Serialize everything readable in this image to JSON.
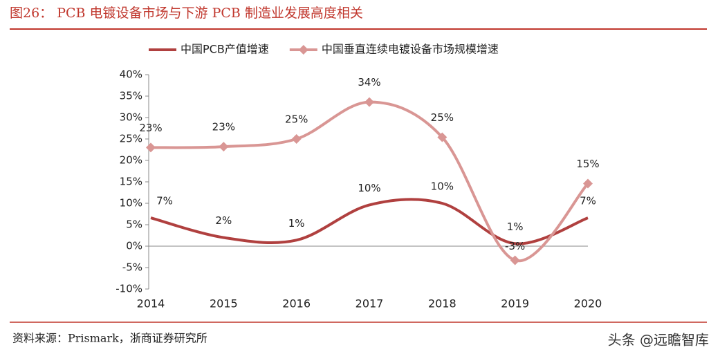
{
  "chart_data": {
    "type": "line",
    "title": "图26： PCB 电镀设备市场与下游 PCB 制造业发展高度相关",
    "source": "资料来源：Prismark，浙商证券研究所",
    "watermark": "头条 @远瞻智库",
    "categories": [
      "2014",
      "2015",
      "2016",
      "2017",
      "2018",
      "2019",
      "2020"
    ],
    "series": [
      {
        "name": "中国PCB产值增速",
        "color": "#b0403f",
        "smooth": true,
        "values": [
          6.6,
          2,
          1.4,
          9.6,
          10,
          0.6,
          6.6
        ],
        "value_labels": [
          "7%",
          "2%",
          "1%",
          "10%",
          "10%",
          "1%",
          "7%"
        ]
      },
      {
        "name": "中国垂直连续电镀设备市场规模增速",
        "color": "#d99694",
        "smooth": true,
        "marker": "diamond",
        "values": [
          23,
          23.2,
          25,
          33.6,
          25.4,
          -3.3,
          14.6
        ],
        "value_labels": [
          "23%",
          "23%",
          "25%",
          "34%",
          "25%",
          "-3%",
          "15%"
        ]
      }
    ],
    "ylim": [
      -10,
      40
    ],
    "yticks": [
      {
        "value": -10,
        "label": "-10%"
      },
      {
        "value": -5,
        "label": "-5%"
      },
      {
        "value": 0,
        "label": "0%"
      },
      {
        "value": 5,
        "label": "5%"
      },
      {
        "value": 10,
        "label": "10%"
      },
      {
        "value": 15,
        "label": "15%"
      },
      {
        "value": 20,
        "label": "20%"
      },
      {
        "value": 25,
        "label": "25%"
      },
      {
        "value": 30,
        "label": "30%"
      },
      {
        "value": 35,
        "label": "35%"
      },
      {
        "value": 40,
        "label": "40%"
      }
    ],
    "legend": "top"
  }
}
